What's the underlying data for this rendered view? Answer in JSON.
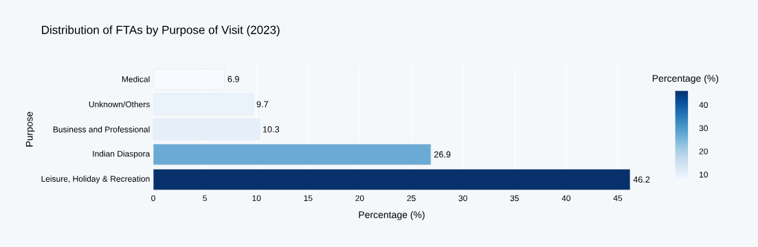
{
  "chart_data": {
    "type": "bar",
    "orientation": "horizontal",
    "title": "Distribution of FTAs by Purpose of Visit (2023)",
    "xlabel": "Percentage (%)",
    "ylabel": "Purpose",
    "clabel": "Percentage (%)",
    "categories": [
      "Medical",
      "Unknown/Others",
      "Business and Professional",
      "Indian Diaspora",
      "Leisure, Holiday & Recreation"
    ],
    "values": [
      6.9,
      9.7,
      10.3,
      26.9,
      46.2
    ],
    "colors": [
      "#f7fbff",
      "#eaf2fb",
      "#e5eff9",
      "#6aaad5",
      "#08306b"
    ],
    "xlim": [
      0,
      46.2
    ],
    "xticks": [
      0,
      5,
      10,
      15,
      20,
      25,
      30,
      35,
      40,
      45
    ],
    "clim": [
      6.9,
      46.2
    ],
    "cticks": [
      10,
      20,
      30,
      40
    ],
    "grid": "x",
    "data_labels": true
  }
}
